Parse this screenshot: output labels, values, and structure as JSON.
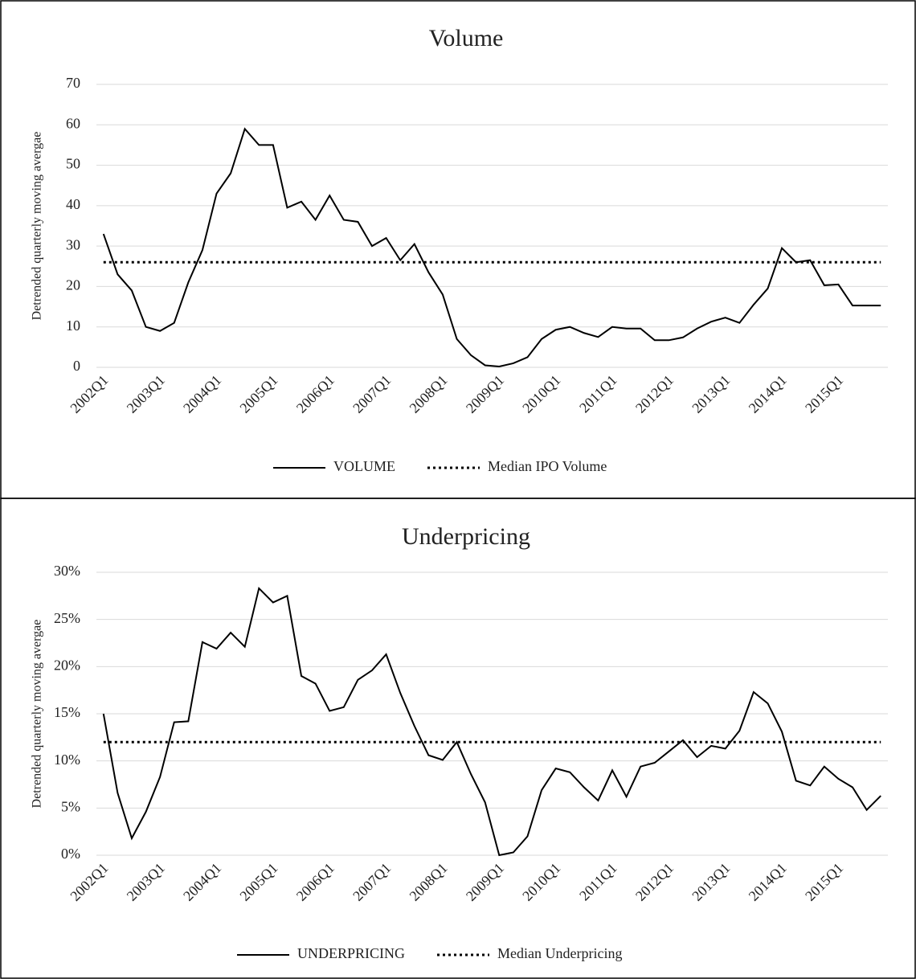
{
  "chart_data": [
    {
      "type": "line",
      "title": "Volume",
      "y_label": "Detrended quarterly moving avergae",
      "categories": [
        "2002Q1",
        null,
        null,
        null,
        "2003Q1",
        null,
        null,
        null,
        "2004Q1",
        null,
        null,
        null,
        "2005Q1",
        null,
        null,
        null,
        "2006Q1",
        null,
        null,
        null,
        "2007Q1",
        null,
        null,
        null,
        "2008Q1",
        null,
        null,
        null,
        "2009Q1",
        null,
        null,
        null,
        "2010Q1",
        null,
        null,
        null,
        "2011Q1",
        null,
        null,
        null,
        "2012Q1",
        null,
        null,
        null,
        "2013Q1",
        null,
        null,
        null,
        "2014Q1",
        null,
        null,
        null,
        "2015Q1",
        null,
        null,
        null
      ],
      "series": [
        {
          "name": "VOLUME",
          "color": "#000000",
          "dash": false,
          "values": [
            33,
            23,
            19,
            10,
            9,
            11,
            21,
            29,
            43,
            48,
            59,
            55,
            55,
            39.5,
            41,
            36.5,
            42.5,
            36.5,
            36,
            30,
            32,
            26.5,
            30.5,
            23.5,
            18,
            7,
            3,
            0.5,
            0.2,
            1,
            2.5,
            7,
            9.3,
            10,
            8.5,
            7.5,
            10,
            9.6,
            9.6,
            6.7,
            6.7,
            7.4,
            9.6,
            11.3,
            12.3,
            11,
            15.5,
            19.5,
            29.5,
            26,
            26.5,
            20.3,
            20.5,
            15.3,
            15.3,
            15.3
          ]
        },
        {
          "name": "Median IPO Volume",
          "color": "#000000",
          "dash": true,
          "values": [
            26,
            26,
            26,
            26,
            26,
            26,
            26,
            26,
            26,
            26,
            26,
            26,
            26,
            26,
            26,
            26,
            26,
            26,
            26,
            26,
            26,
            26,
            26,
            26,
            26,
            26,
            26,
            26,
            26,
            26,
            26,
            26,
            26,
            26,
            26,
            26,
            26,
            26,
            26,
            26,
            26,
            26,
            26,
            26,
            26,
            26,
            26,
            26,
            26,
            26,
            26,
            26,
            26,
            26,
            26,
            26
          ]
        }
      ],
      "ylim": [
        0,
        70
      ],
      "yticks": [
        0,
        10,
        20,
        30,
        40,
        50,
        60,
        70
      ],
      "grid": true
    },
    {
      "type": "line",
      "title": "Underpricing",
      "y_label": "Detrended quarterly moving avergae",
      "categories": [
        "2002Q1",
        null,
        null,
        null,
        "2003Q1",
        null,
        null,
        null,
        "2004Q1",
        null,
        null,
        null,
        "2005Q1",
        null,
        null,
        null,
        "2006Q1",
        null,
        null,
        null,
        "2007Q1",
        null,
        null,
        null,
        "2008Q1",
        null,
        null,
        null,
        "2009Q1",
        null,
        null,
        null,
        "2010Q1",
        null,
        null,
        null,
        "2011Q1",
        null,
        null,
        null,
        "2012Q1",
        null,
        null,
        null,
        "2013Q1",
        null,
        null,
        null,
        "2014Q1",
        null,
        null,
        null,
        "2015Q1",
        null,
        null,
        null
      ],
      "series": [
        {
          "name": "UNDERPRICING",
          "color": "#000000",
          "dash": false,
          "values": [
            15,
            6.6,
            1.8,
            4.6,
            8.3,
            14.1,
            14.2,
            22.6,
            21.9,
            23.6,
            22.1,
            28.3,
            26.8,
            27.5,
            19,
            18.2,
            15.3,
            15.7,
            18.6,
            19.6,
            21.3,
            17.2,
            13.7,
            10.6,
            10.1,
            12,
            8.6,
            5.6,
            0,
            0.3,
            2,
            6.9,
            9.2,
            8.8,
            7.2,
            5.8,
            9,
            6.2,
            9.4,
            9.8,
            11,
            12.2,
            10.4,
            11.6,
            11.3,
            13.2,
            17.3,
            16.1,
            13.1,
            7.9,
            7.4,
            9.4,
            8.1,
            7.2,
            4.8,
            6.3
          ]
        },
        {
          "name": "Median Underpricing",
          "color": "#000000",
          "dash": true,
          "values": [
            12,
            12,
            12,
            12,
            12,
            12,
            12,
            12,
            12,
            12,
            12,
            12,
            12,
            12,
            12,
            12,
            12,
            12,
            12,
            12,
            12,
            12,
            12,
            12,
            12,
            12,
            12,
            12,
            12,
            12,
            12,
            12,
            12,
            12,
            12,
            12,
            12,
            12,
            12,
            12,
            12,
            12,
            12,
            12,
            12,
            12,
            12,
            12,
            12,
            12,
            12,
            12,
            12,
            12,
            12,
            12
          ]
        }
      ],
      "ylim": [
        0,
        30
      ],
      "yticks": [
        {
          "value": 0,
          "label": "0%"
        },
        {
          "value": 5,
          "label": "5%"
        },
        {
          "value": 10,
          "label": "10%"
        },
        {
          "value": 15,
          "label": "15%"
        },
        {
          "value": 20,
          "label": "20%"
        },
        {
          "value": 25,
          "label": "25%"
        },
        {
          "value": 30,
          "label": "30%"
        }
      ],
      "grid": true
    }
  ]
}
